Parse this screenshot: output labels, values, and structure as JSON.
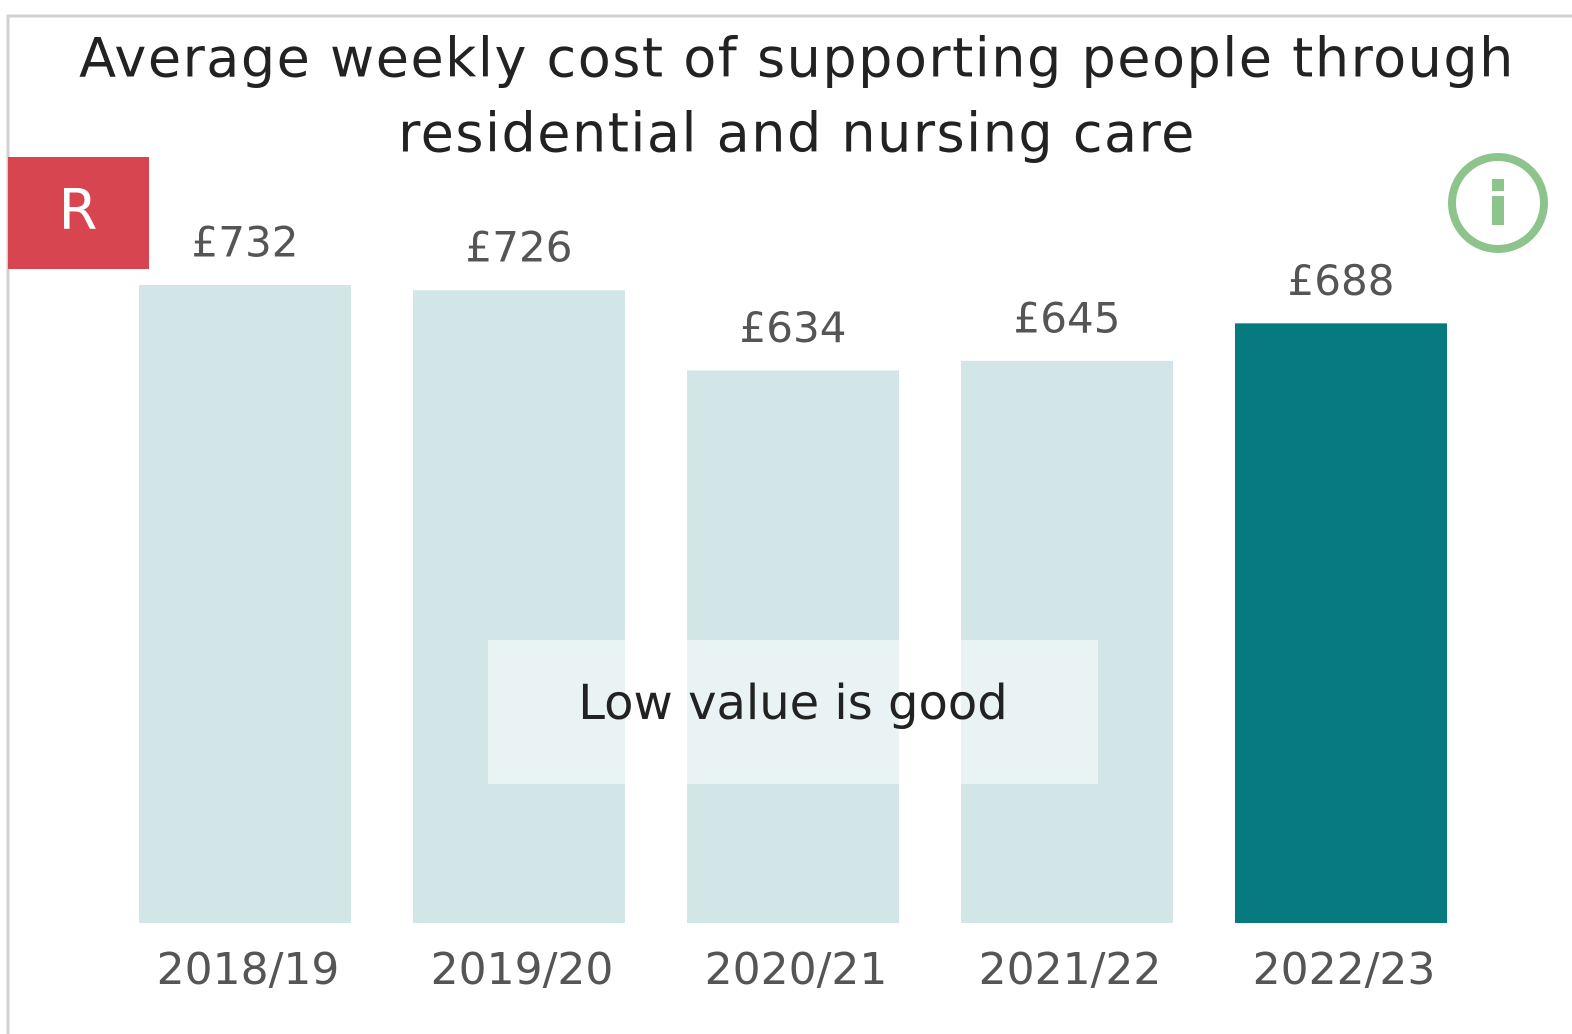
{
  "chart_data": {
    "type": "bar",
    "title": [
      "Average weekly cost of supporting people through",
      "residential and nursing care"
    ],
    "status": "R",
    "annotation": "Low value is good",
    "categories": [
      "2018/19",
      "2019/20",
      "2020/21",
      "2021/22",
      "2022/23"
    ],
    "values": [
      732,
      726,
      634,
      645,
      688
    ],
    "value_labels": [
      "£732",
      "£726",
      "£634",
      "£645",
      "£688"
    ],
    "colors": [
      "#d3e6e7",
      "#d3e6e7",
      "#d3e6e7",
      "#d3e6e7",
      "#077a80"
    ]
  }
}
